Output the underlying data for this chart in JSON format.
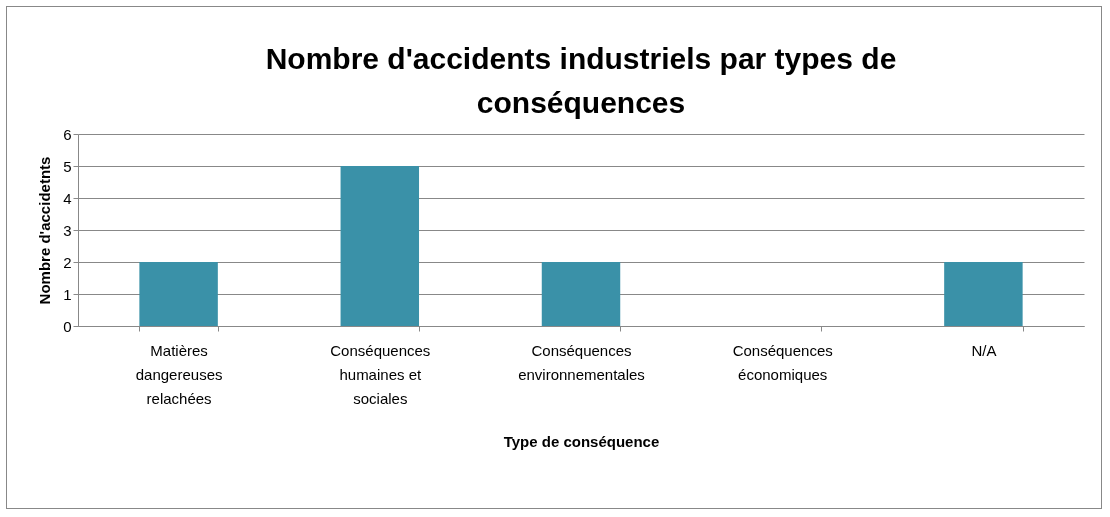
{
  "chart_data": {
    "type": "bar",
    "title": "Nombre d'accidents industriels par types de conséquences",
    "xlabel": "Type de conséquence",
    "ylabel": "Nombre d'accidetnts",
    "categories": [
      "Matières dangereuses relachées",
      "Conséquences humaines et sociales",
      "Conséquences environnementales",
      "Conséquences économiques",
      "N/A"
    ],
    "values": [
      2,
      5,
      2,
      0,
      2
    ],
    "color": "#3a91a8",
    "ylim": [
      0,
      6
    ],
    "yticks": [
      0,
      1,
      2,
      3,
      4,
      5,
      6
    ],
    "grid": "y"
  }
}
